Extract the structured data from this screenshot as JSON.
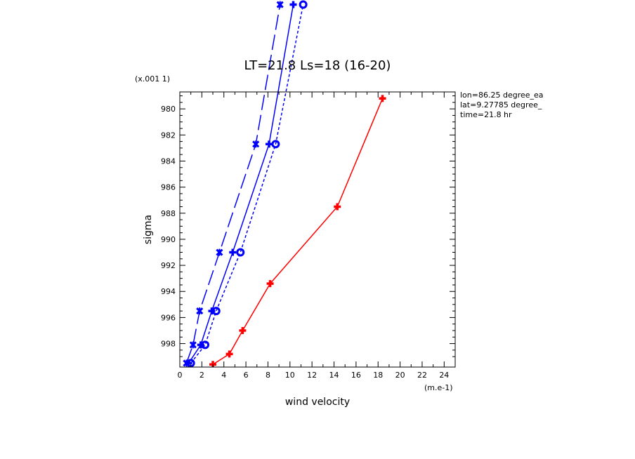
{
  "chart_data": {
    "type": "line",
    "title": "LT=21.8  Ls=18 (16-20)",
    "xlabel": "wind velocity",
    "ylabel": "sigma",
    "x_unit_label": "(m.e-1)",
    "y_unit_label": "(x.001 1)",
    "xlim": [
      0,
      25
    ],
    "ylim": [
      999.8,
      978.7
    ],
    "x_ticks": [
      0,
      2,
      4,
      6,
      8,
      10,
      12,
      14,
      16,
      18,
      20,
      22,
      24
    ],
    "y_ticks": [
      980,
      982,
      984,
      986,
      988,
      990,
      992,
      994,
      996,
      998
    ],
    "grid": false,
    "info_lines": [
      "lon=86.25 degree_ea",
      "lat=9.27785 degree_",
      "time=21.8 hr"
    ],
    "series": [
      {
        "style": "dash",
        "color": "#0000ff",
        "marker": "x",
        "x": [
          0.6,
          1.2,
          1.8,
          3.6,
          6.9,
          9.1
        ],
        "y": [
          999.5,
          998.1,
          995.5,
          991.0,
          982.7,
          972.0
        ]
      },
      {
        "style": "solid",
        "color": "#0000ff",
        "marker": "plus",
        "x": [
          0.8,
          1.9,
          2.9,
          4.8,
          8.1,
          10.3
        ],
        "y": [
          999.5,
          998.1,
          995.5,
          991.0,
          982.7,
          972.0
        ]
      },
      {
        "style": "dot",
        "color": "#0000ff",
        "marker": "circle",
        "x": [
          1.0,
          2.3,
          3.3,
          5.5,
          8.7,
          11.2
        ],
        "y": [
          999.5,
          998.1,
          995.5,
          991.0,
          982.7,
          972.0
        ]
      },
      {
        "style": "solid",
        "color": "#ff0000",
        "marker": "plus",
        "x": [
          3.0,
          4.5,
          5.7,
          8.2,
          14.3,
          18.4
        ],
        "y": [
          999.6,
          998.8,
          997.0,
          993.4,
          987.5,
          979.2
        ]
      }
    ]
  }
}
